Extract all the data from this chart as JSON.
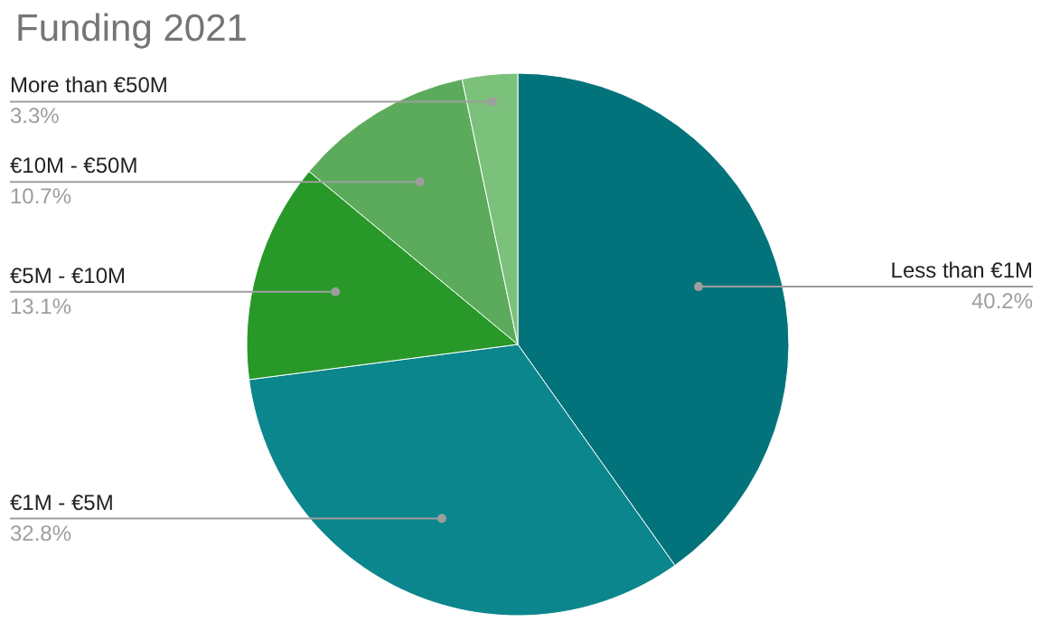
{
  "chart_data": {
    "type": "pie",
    "title": "Funding 2021",
    "categories": [
      "Less than €1M",
      "€1M - €5M",
      "€5M - €10M",
      "€10M - €50M",
      "More than €50M"
    ],
    "values": [
      40.2,
      32.8,
      13.1,
      10.7,
      3.3
    ],
    "value_labels": [
      "40.2%",
      "32.8%",
      "13.1%",
      "10.7%",
      "3.3%"
    ],
    "colors": [
      "#02737a",
      "#0b868d",
      "#289828",
      "#5cab5c",
      "#7bc17b"
    ]
  }
}
